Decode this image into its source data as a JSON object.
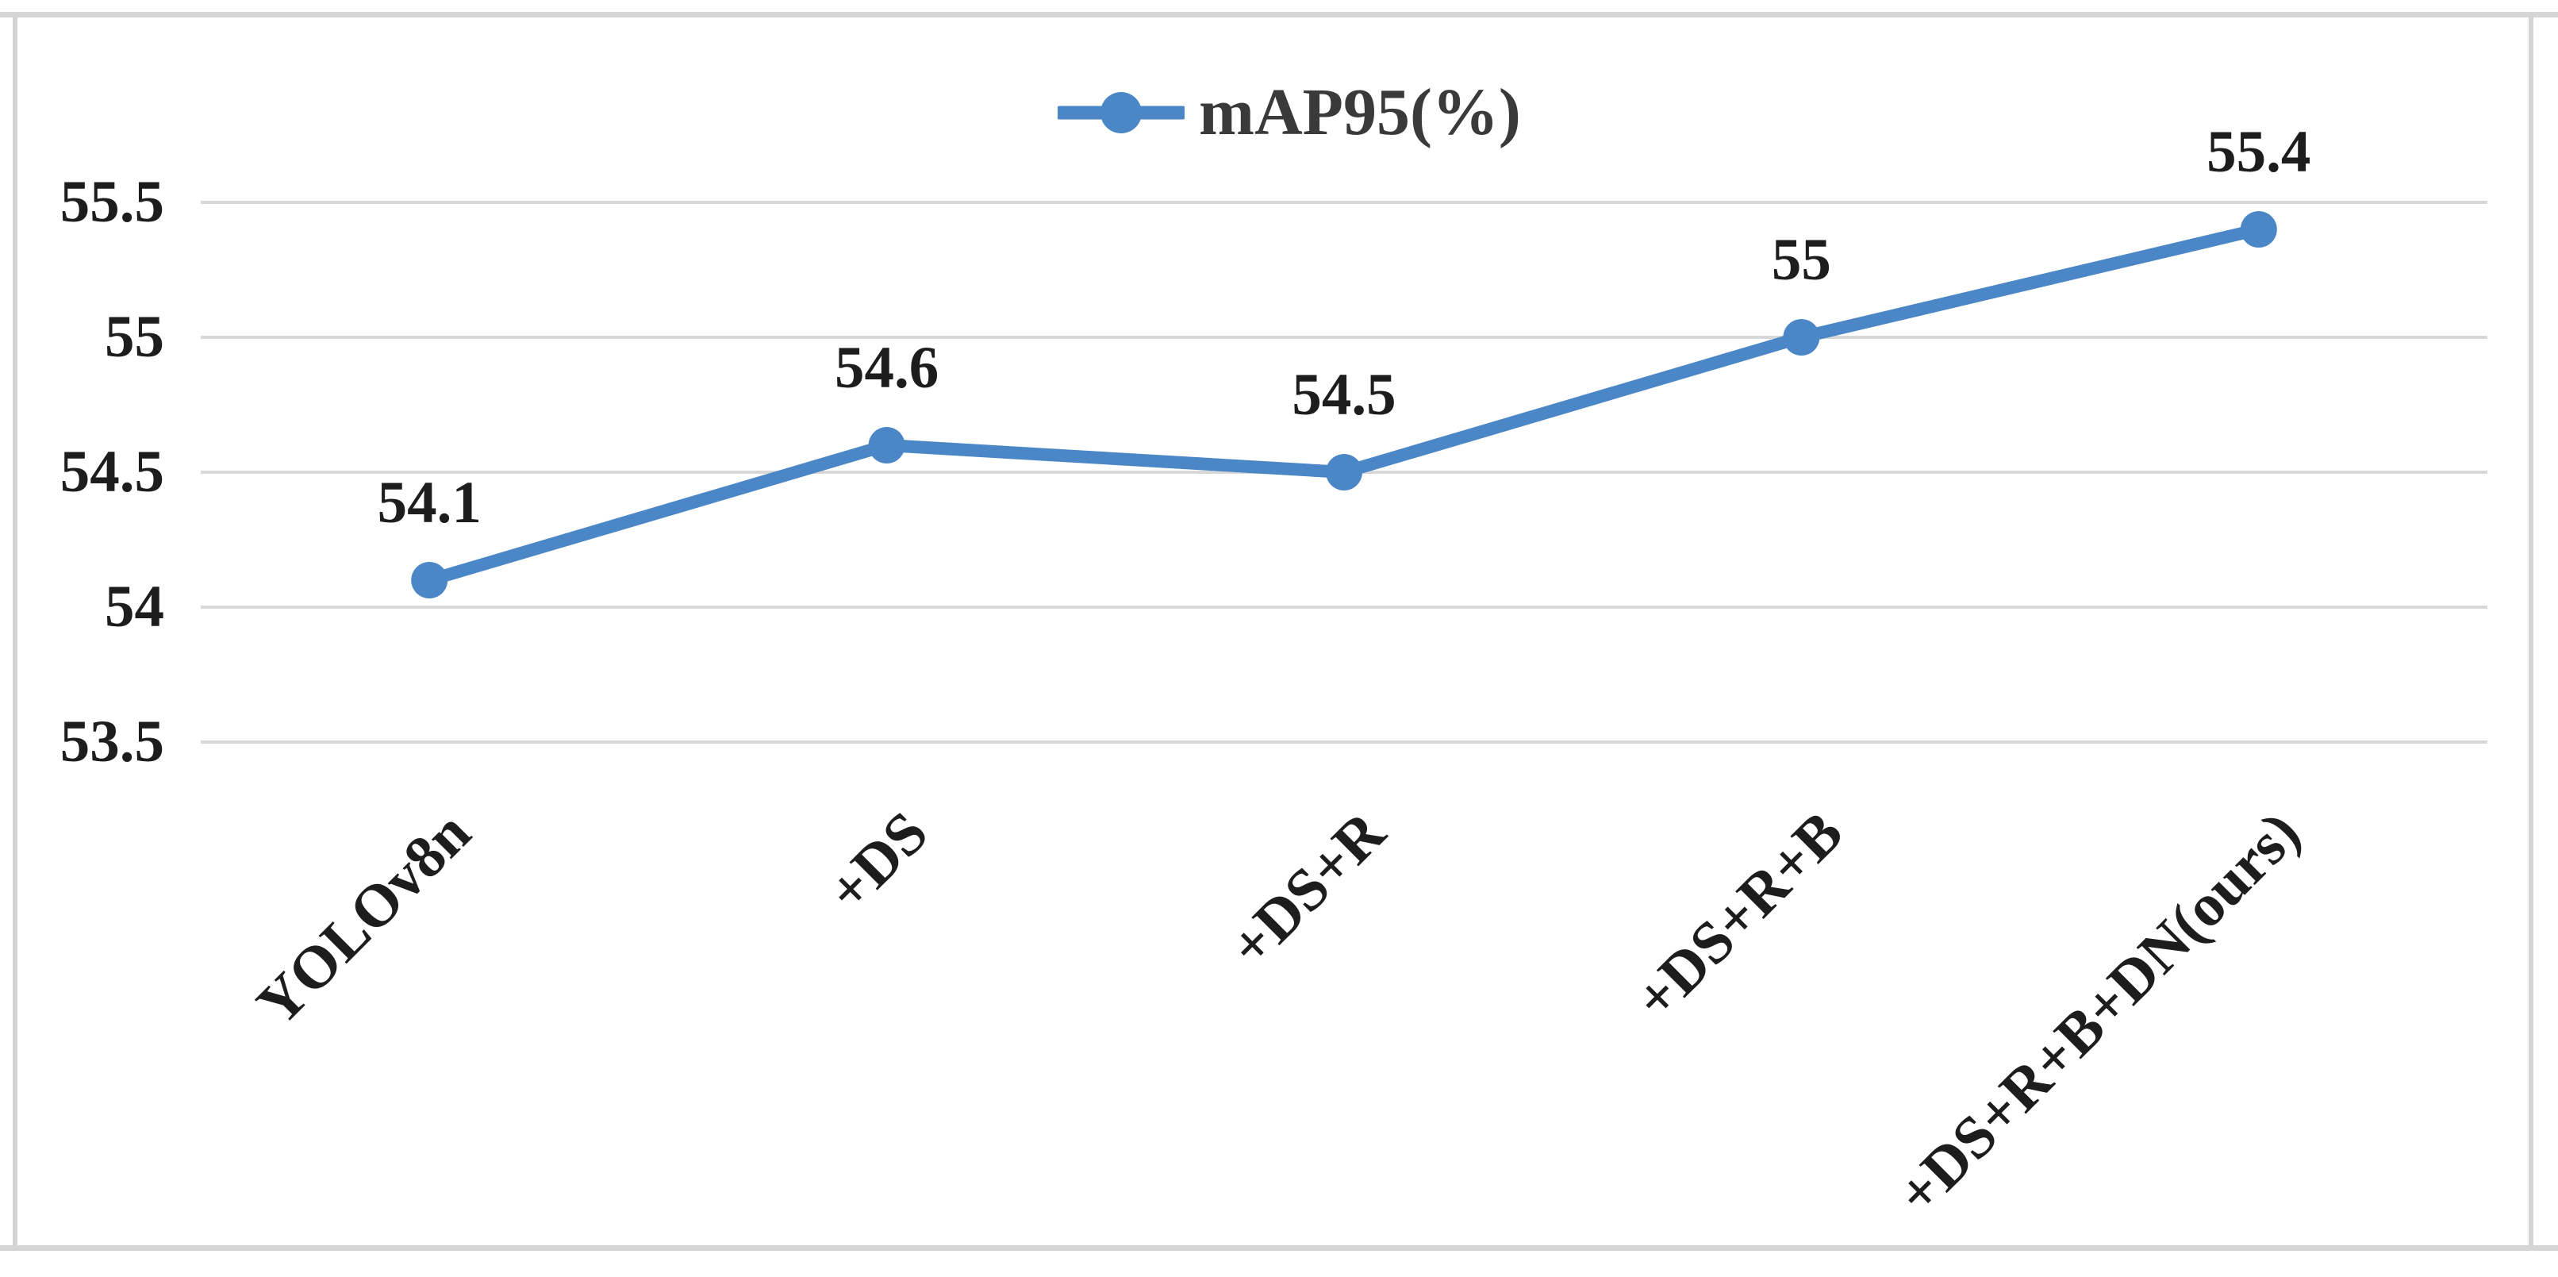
{
  "legend": {
    "label": "mAP95(%)"
  },
  "chart_data": {
    "type": "line",
    "title": "",
    "xlabel": "",
    "ylabel": "",
    "categories": [
      "YOLOv8n",
      "+DS",
      "+DS+R",
      "+DS+R+B",
      "+DS+R+B+DN(ours)"
    ],
    "series": [
      {
        "name": "mAP95(%)",
        "values": [
          54.1,
          54.6,
          54.5,
          55,
          55.4
        ],
        "data_labels": [
          "54.1",
          "54.6",
          "54.5",
          "55",
          "55.4"
        ]
      }
    ],
    "y_ticks": [
      "55.5",
      "55",
      "54.5",
      "54",
      "53.5"
    ],
    "ylim": [
      53.5,
      55.5
    ],
    "grid": "horizontal",
    "legend_position": "top-center",
    "marker": "circle",
    "colors": {
      "series": "#4b86c6",
      "grid": "#d8d8d8",
      "label_text": "#1d1d1d",
      "legend_text": "#3a3a3a",
      "frame_border": "#d4d4d4",
      "background": "#ffffff"
    }
  }
}
